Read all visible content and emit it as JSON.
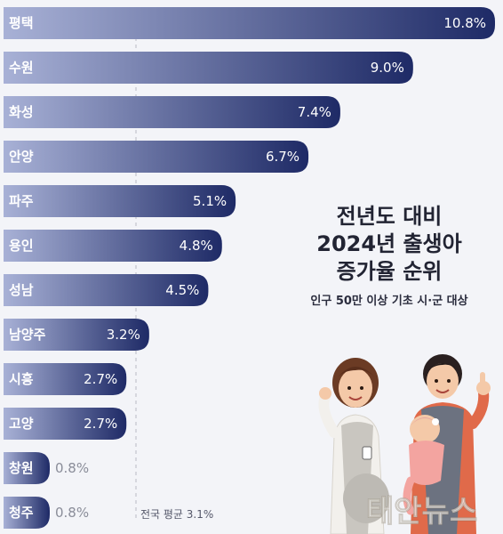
{
  "chart_data": {
    "type": "bar",
    "orientation": "horizontal",
    "categories": [
      "평택",
      "수원",
      "화성",
      "안양",
      "파주",
      "용인",
      "성남",
      "남양주",
      "시흥",
      "고양",
      "창원",
      "청주"
    ],
    "values": [
      10.8,
      9.0,
      7.4,
      6.7,
      5.1,
      4.8,
      4.5,
      3.2,
      2.7,
      2.7,
      0.8,
      0.8
    ],
    "value_labels": [
      "10.8%",
      "9.0%",
      "7.4%",
      "6.7%",
      "5.1%",
      "4.8%",
      "4.5%",
      "3.2%",
      "2.7%",
      "2.7%",
      "0.8%",
      "0.8%"
    ],
    "xlim": [
      0,
      10.8
    ],
    "reference_line": {
      "value": 3.1,
      "label": "전국 평균 3.1%"
    },
    "title_lines": [
      "전년도 대비",
      "2024년 출생아",
      "증가율 순위"
    ],
    "subtitle": "인구 50만 이상 기초 시·군 대상",
    "colors": {
      "bar_dark": "#1e2a66",
      "bar_light": "#aab2d6",
      "background": "#f3f4f8"
    }
  },
  "watermark": "태안뉴스"
}
